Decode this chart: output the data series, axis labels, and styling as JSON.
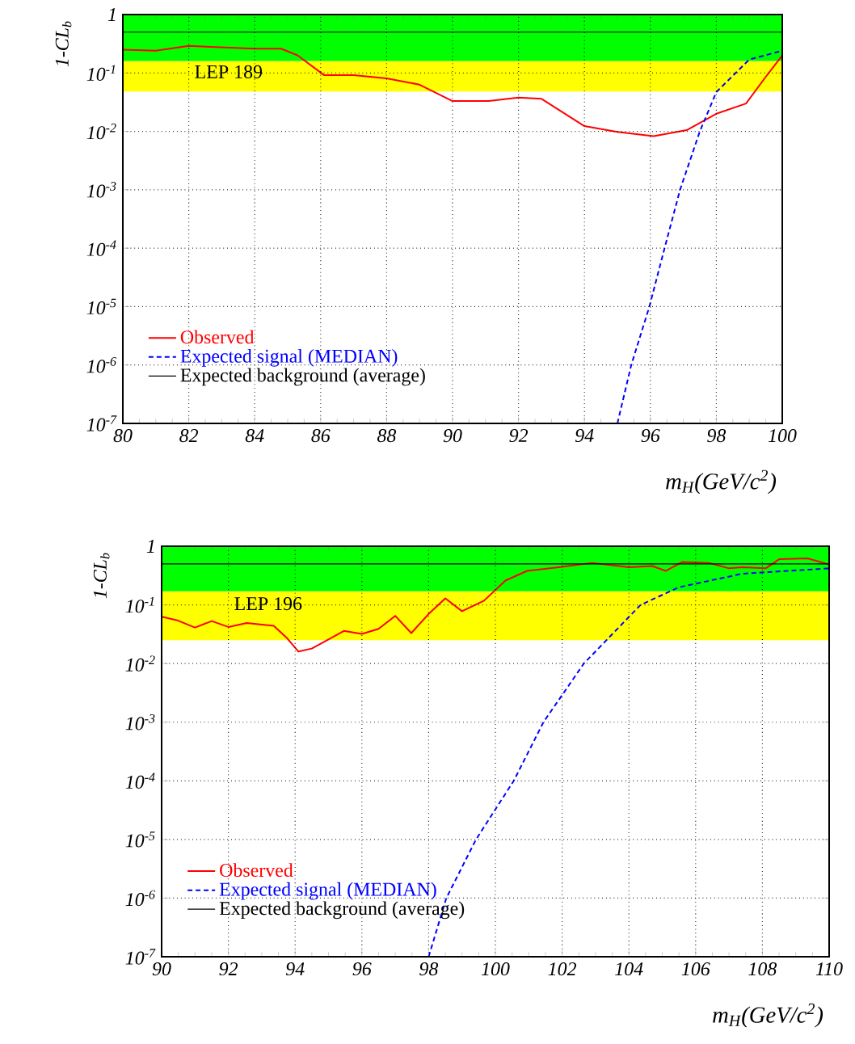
{
  "chart_data": [
    {
      "type": "line",
      "xlabel": "m$_{H}$(GeV/c$^{2}$)",
      "ylabel": "1-CL$_{b}$",
      "log": "y",
      "grid": true,
      "legend": "bottom left",
      "xlim": [
        80,
        100
      ],
      "xticks": [
        80,
        82,
        84,
        86,
        88,
        90,
        92,
        94,
        96,
        98,
        100
      ],
      "ylim": [
        1e-07,
        1
      ],
      "yticks": [
        1,
        {
          "value": 0.1,
          "label": "10$^{-1}$"
        },
        {
          "value": 0.01,
          "label": "10$^{-2}$"
        },
        {
          "value": 0.001,
          "label": "10$^{-3}$"
        },
        {
          "value": 0.0001,
          "label": "10$^{-4}$"
        },
        {
          "value": 1e-05,
          "label": "10$^{-5}$"
        },
        {
          "value": 1e-06,
          "label": "10$^{-6}$"
        },
        {
          "value": 1e-07,
          "label": "10$^{-7}$"
        }
      ],
      "annotations": [
        "LEP 189"
      ],
      "bands": [
        {
          "axis": "y",
          "from": 0.048,
          "to": 0.16,
          "color": "#ffff00"
        },
        {
          "axis": "y",
          "from": 0.16,
          "to": 1,
          "color": "#00ff00"
        }
      ],
      "series": [
        {
          "name": "Observed",
          "color": "#ff0000",
          "line_style": "solid",
          "x": [
            80,
            81,
            82,
            84,
            84.8,
            85.3,
            86.1,
            87,
            88,
            89,
            90,
            91.1,
            92,
            92.7,
            94,
            95,
            96.1,
            97.1,
            98,
            98.9,
            99.5,
            100
          ],
          "values": [
            0.25,
            0.24,
            0.29,
            0.26,
            0.26,
            0.2,
            0.092,
            0.092,
            0.081,
            0.063,
            0.033,
            0.033,
            0.038,
            0.036,
            0.0123,
            0.0098,
            0.0083,
            0.0105,
            0.02,
            0.03,
            0.086,
            0.2
          ]
        },
        {
          "name": "Expected signal (MEDIAN)",
          "color": "#0000ff",
          "line_style": "dashed",
          "x": [
            95,
            95.42,
            95.97,
            96.43,
            96.9,
            97.5,
            98,
            99,
            100
          ],
          "values": [
            1e-07,
            1e-06,
            1e-05,
            0.0001,
            0.001,
            0.01,
            0.047,
            0.17,
            0.24
          ]
        },
        {
          "name": "Expected background (average)",
          "color": "#000000",
          "line_style": "solid",
          "x": [
            80,
            100
          ],
          "values": [
            0.5,
            0.5
          ]
        }
      ]
    },
    {
      "type": "line",
      "xlabel": "m$_{H}$(GeV/c$^{2}$)",
      "ylabel": "1-CL$_{b}$",
      "log": "y",
      "grid": true,
      "legend": "bottom left",
      "xlim": [
        90,
        110
      ],
      "xticks": [
        90,
        92,
        94,
        96,
        98,
        100,
        102,
        104,
        106,
        108,
        110
      ],
      "ylim": [
        1e-07,
        1
      ],
      "yticks": [
        1,
        {
          "value": 0.1,
          "label": "10$^{-1}$"
        },
        {
          "value": 0.01,
          "label": "10$^{-2}$"
        },
        {
          "value": 0.001,
          "label": "10$^{-3}$"
        },
        {
          "value": 0.0001,
          "label": "10$^{-4}$"
        },
        {
          "value": 1e-05,
          "label": "10$^{-5}$"
        },
        {
          "value": 1e-06,
          "label": "10$^{-6}$"
        },
        {
          "value": 1e-07,
          "label": "10$^{-7}$"
        }
      ],
      "annotations": [
        "LEP 196"
      ],
      "bands": [
        {
          "axis": "y",
          "from": 0.025,
          "to": 0.17,
          "color": "#ffff00"
        },
        {
          "axis": "y",
          "from": 0.17,
          "to": 1,
          "color": "#00ff00"
        }
      ],
      "series": [
        {
          "name": "Observed",
          "color": "#ff0000",
          "line_style": "solid",
          "x": [
            90,
            90.45,
            91,
            91.5,
            92,
            92.55,
            93.36,
            93.76,
            94.1,
            94.5,
            95.46,
            96,
            96.5,
            97,
            97.48,
            98,
            98.5,
            99,
            99.66,
            100.3,
            100.95,
            101.9,
            102.9,
            104,
            104.7,
            105.1,
            105.6,
            106.4,
            107,
            107.4,
            108.1,
            108.5,
            109.35,
            110
          ],
          "values": [
            0.063,
            0.055,
            0.041,
            0.053,
            0.042,
            0.049,
            0.044,
            0.027,
            0.016,
            0.018,
            0.036,
            0.032,
            0.039,
            0.065,
            0.033,
            0.07,
            0.129,
            0.078,
            0.118,
            0.26,
            0.38,
            0.44,
            0.52,
            0.44,
            0.46,
            0.38,
            0.54,
            0.52,
            0.42,
            0.44,
            0.42,
            0.6,
            0.62,
            0.49
          ]
        },
        {
          "name": "Expected signal (MEDIAN)",
          "color": "#0000ff",
          "line_style": "dashed",
          "x": [
            98,
            98.53,
            99.42,
            100.55,
            101.44,
            102.65,
            104.35,
            105.5,
            107.4,
            110
          ],
          "values": [
            1e-07,
            1e-06,
            1e-05,
            0.0001,
            0.001,
            0.01,
            0.1,
            0.2,
            0.34,
            0.42
          ]
        },
        {
          "name": "Expected background (average)",
          "color": "#000000",
          "line_style": "solid",
          "x": [
            90,
            110
          ],
          "values": [
            0.5,
            0.5
          ]
        }
      ]
    }
  ]
}
